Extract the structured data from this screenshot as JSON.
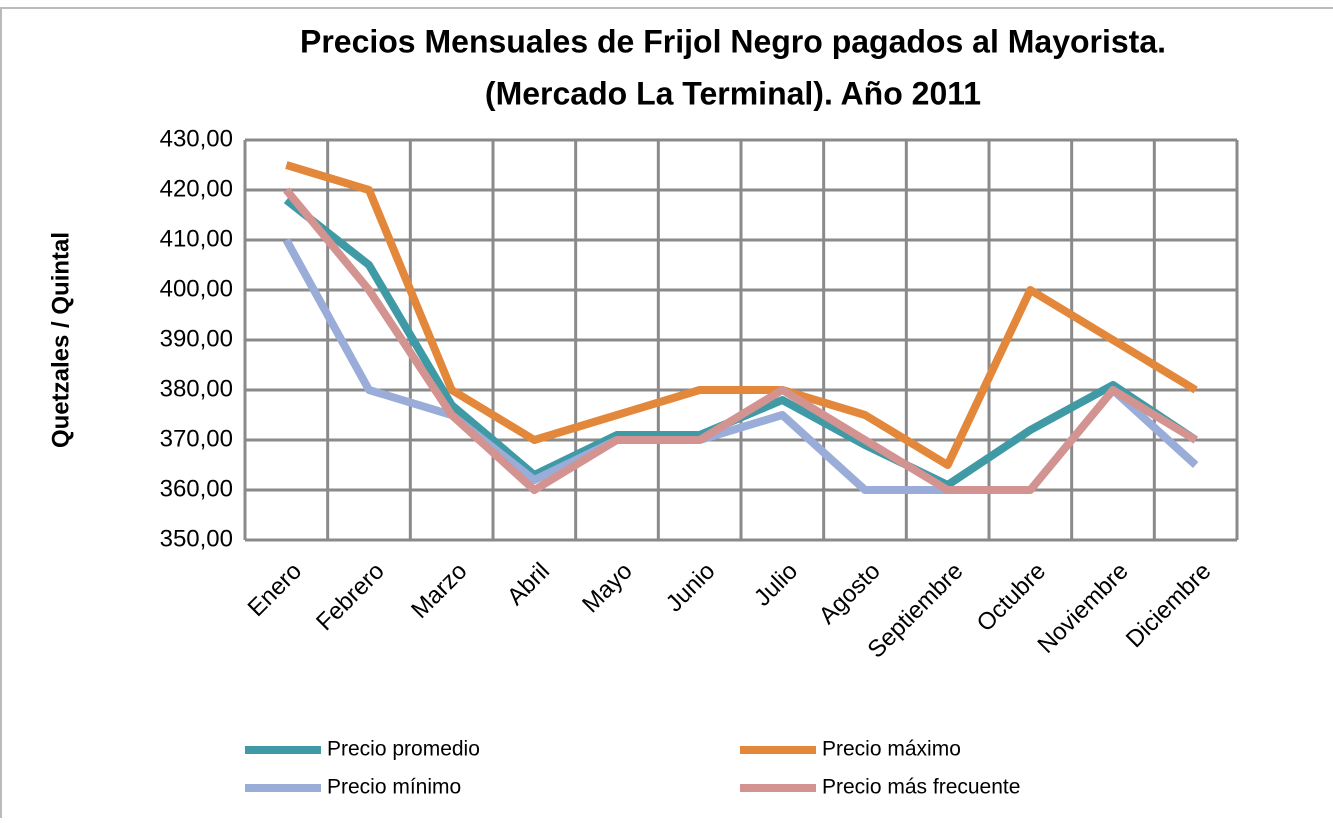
{
  "chart_data": {
    "type": "line",
    "title": [
      "Precios Mensuales de Frijol Negro pagados al Mayorista.",
      "(Mercado La Terminal). Año 2011"
    ],
    "y_label": "Quetzales / Quintal",
    "categories": [
      "Enero",
      "Febrero",
      "Marzo",
      "Abril",
      "Mayo",
      "Junio",
      "Julio",
      "Agosto",
      "Septiembre",
      "Octubre",
      "Noviembre",
      "Diciembre"
    ],
    "series": [
      {
        "name": "Precio promedio",
        "color": "#3f9aa6",
        "values": [
          418,
          405,
          377,
          363,
          371,
          371,
          378,
          369,
          361,
          372,
          381,
          370
        ]
      },
      {
        "name": "Precio máximo",
        "color": "#e3883a",
        "values": [
          425,
          420,
          380,
          370,
          375,
          380,
          380,
          375,
          365,
          400,
          390,
          380
        ]
      },
      {
        "name": "Precio mínimo",
        "color": "#9aacd8",
        "values": [
          410,
          380,
          375,
          362,
          370,
          370,
          375,
          360,
          360,
          360,
          380,
          365
        ]
      },
      {
        "name": "Precio más frecuente",
        "color": "#d39391",
        "values": [
          420,
          400,
          375,
          360,
          370,
          370,
          380,
          370,
          360,
          360,
          380,
          370
        ]
      }
    ],
    "ylim": [
      350,
      430
    ],
    "yticks": [
      {
        "value": 350,
        "label": "350,00"
      },
      {
        "value": 360,
        "label": "360,00"
      },
      {
        "value": 370,
        "label": "370,00"
      },
      {
        "value": 380,
        "label": "380,00"
      },
      {
        "value": 390,
        "label": "390,00"
      },
      {
        "value": 400,
        "label": "400,00"
      },
      {
        "value": 410,
        "label": "410,00"
      },
      {
        "value": 420,
        "label": "420,00"
      },
      {
        "value": 430,
        "label": "430,00"
      }
    ],
    "grid": true
  }
}
